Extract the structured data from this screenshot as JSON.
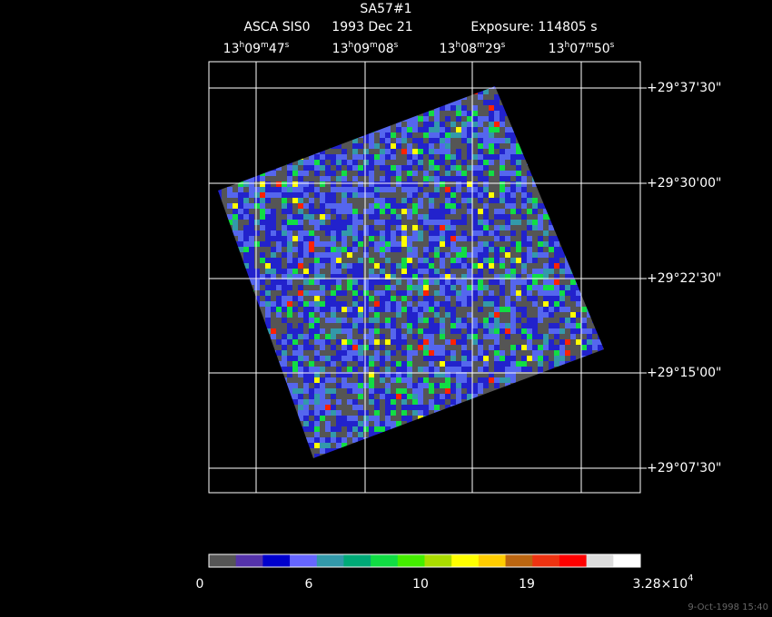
{
  "header": {
    "title": "SA57#1",
    "instrument": "ASCA SIS0",
    "date": "1993 Dec 21",
    "exposure": "Exposure: 114805 s"
  },
  "ra_ticks": [
    "13h09m47s",
    "13h09m08s",
    "13h08m29s",
    "13h07m50s"
  ],
  "dec_ticks": [
    "+29°37'30\"",
    "+29°30'00\"",
    "+29°22'30\"",
    "+29°15'00\"",
    "+29°07'30\""
  ],
  "colorbar": {
    "colors": [
      "#555555",
      "#5533aa",
      "#0000cc",
      "#6666ff",
      "#3399aa",
      "#00aa77",
      "#11dd44",
      "#44ee00",
      "#aadd00",
      "#ffff00",
      "#ffcc00",
      "#bb6611",
      "#ee3311",
      "#ff0000",
      "#dddddd",
      "#ffffff"
    ],
    "labels": [
      "0",
      "6",
      "10",
      "19"
    ],
    "max_label": {
      "base": "3.28×10",
      "exp": "4"
    }
  },
  "footer": {
    "timestamp": "9-Oct-1998 15:40"
  }
}
